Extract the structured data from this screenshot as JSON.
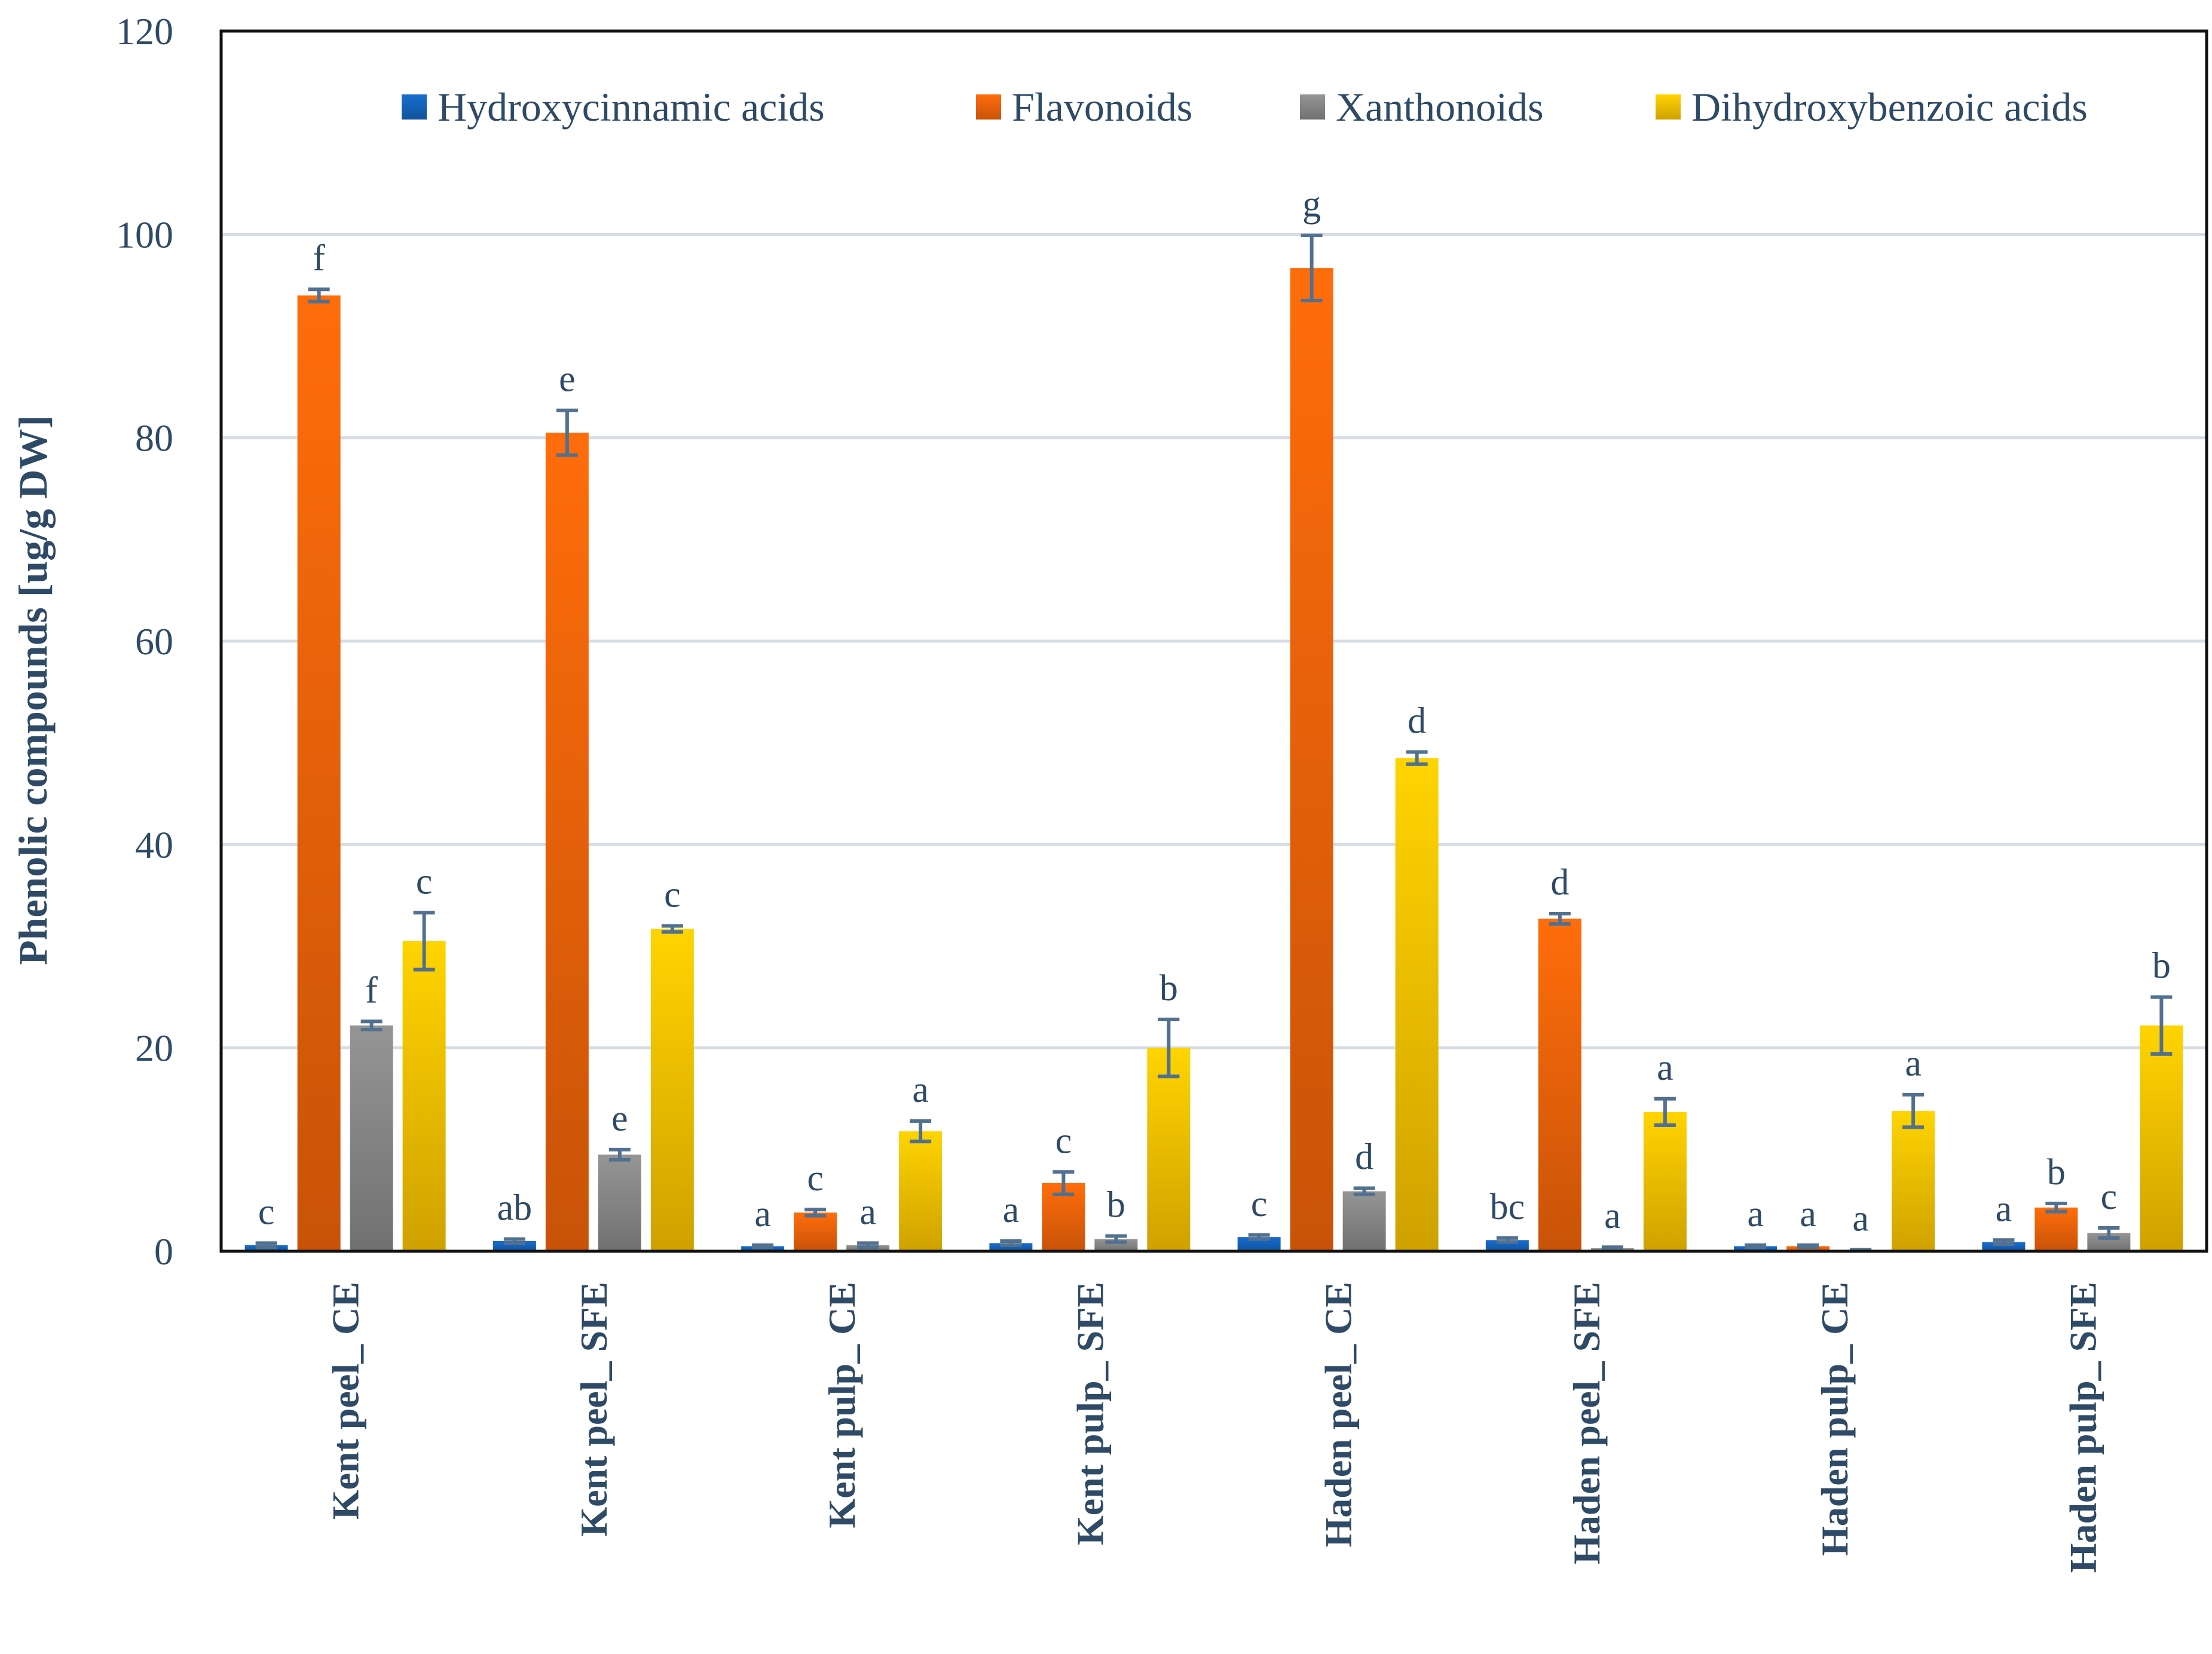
{
  "chart_data": {
    "type": "bar",
    "title": "",
    "xlabel": "",
    "ylabel": "Phenolic compounds [ug/g DW]",
    "ylim": [
      0,
      120
    ],
    "yticks": [
      0,
      20,
      40,
      60,
      80,
      100,
      120
    ],
    "grid": true,
    "legend_position": "top",
    "categories": [
      "Kent peel_ CE",
      "Kent peel_ SFE",
      "Kent pulp_ CE",
      "Kent pulp_ SFE",
      "Haden peel_ CE",
      "Haden peel_ SFE",
      "Haden pulp_ CE",
      "Haden pulp_ SFE"
    ],
    "series": [
      {
        "name": "Hydroxycinnamic acids",
        "color": "#1565c0",
        "values": [
          0.6,
          1.0,
          0.5,
          0.8,
          1.4,
          1.1,
          0.5,
          0.9
        ],
        "errors": [
          0.2,
          0.2,
          0.1,
          0.2,
          0.2,
          0.2,
          0.1,
          0.2
        ],
        "letters": [
          "c",
          "ab",
          "a",
          "a",
          "c",
          "bc",
          "a",
          "a"
        ]
      },
      {
        "name": "Flavonoids",
        "color": "#f4650a",
        "values": [
          94.0,
          80.5,
          3.8,
          6.7,
          96.7,
          32.7,
          0.5,
          4.3
        ],
        "errors": [
          0.6,
          2.2,
          0.3,
          1.1,
          3.2,
          0.5,
          0.1,
          0.4
        ],
        "letters": [
          "f",
          "e",
          "c",
          "c",
          "g",
          "d",
          "a",
          "b"
        ]
      },
      {
        "name": "Xanthonoids",
        "color": "#8a8a8a",
        "values": [
          22.2,
          9.5,
          0.6,
          1.2,
          5.9,
          0.3,
          0.1,
          1.8
        ],
        "errors": [
          0.4,
          0.5,
          0.2,
          0.3,
          0.3,
          0.1,
          0.05,
          0.5
        ],
        "letters": [
          "f",
          "e",
          "a",
          "b",
          "d",
          "a",
          "a",
          "c"
        ]
      },
      {
        "name": "Dihydroxybenzoic acids",
        "color": "#fcc400",
        "values": [
          30.5,
          31.7,
          11.8,
          20.0,
          48.5,
          13.7,
          13.8,
          22.2
        ],
        "errors": [
          2.8,
          0.3,
          1.0,
          2.8,
          0.6,
          1.3,
          1.6,
          2.8
        ],
        "letters": [
          "c",
          "c",
          "a",
          "b",
          "d",
          "a",
          "a",
          "b"
        ]
      }
    ]
  }
}
